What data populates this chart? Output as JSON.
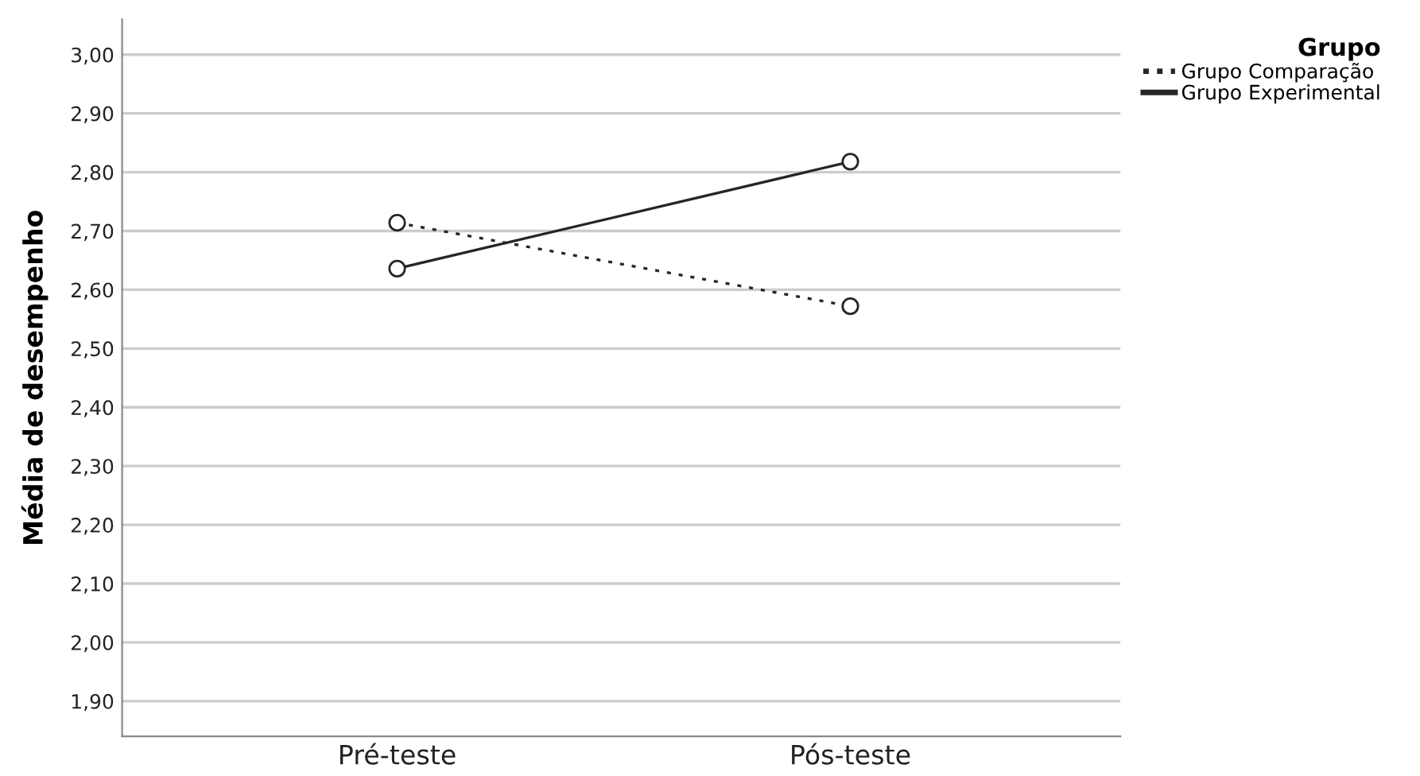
{
  "chart_data": {
    "type": "line",
    "ylabel": "Média de desempenho",
    "legend_title": "Grupo",
    "categories": [
      "Pré-teste",
      "Pós-teste"
    ],
    "series": [
      {
        "name": "Grupo Comparação",
        "color": "#262626",
        "values": [
          2.714,
          2.572
        ],
        "line_style": "dotted"
      },
      {
        "name": "Grupo Experimental",
        "color": "#262626",
        "values": [
          2.636,
          2.818
        ],
        "line_style": "solid"
      }
    ],
    "marker": "circle",
    "ylim": [
      1.84,
      3.06
    ],
    "yticks": [
      {
        "value": 1.9,
        "label": "1,90"
      },
      {
        "value": 2.0,
        "label": "2,00"
      },
      {
        "value": 2.1,
        "label": "2,10"
      },
      {
        "value": 2.2,
        "label": "2,20"
      },
      {
        "value": 2.3,
        "label": "2,30"
      },
      {
        "value": 2.4,
        "label": "2,40"
      },
      {
        "value": 2.5,
        "label": "2,50"
      },
      {
        "value": 2.6,
        "label": "2,60"
      },
      {
        "value": 2.7,
        "label": "2,70"
      },
      {
        "value": 2.8,
        "label": "2,80"
      },
      {
        "value": 2.9,
        "label": "2,90"
      },
      {
        "value": 3.0,
        "label": "3,00"
      }
    ],
    "grid": "y",
    "legend": "top right"
  }
}
